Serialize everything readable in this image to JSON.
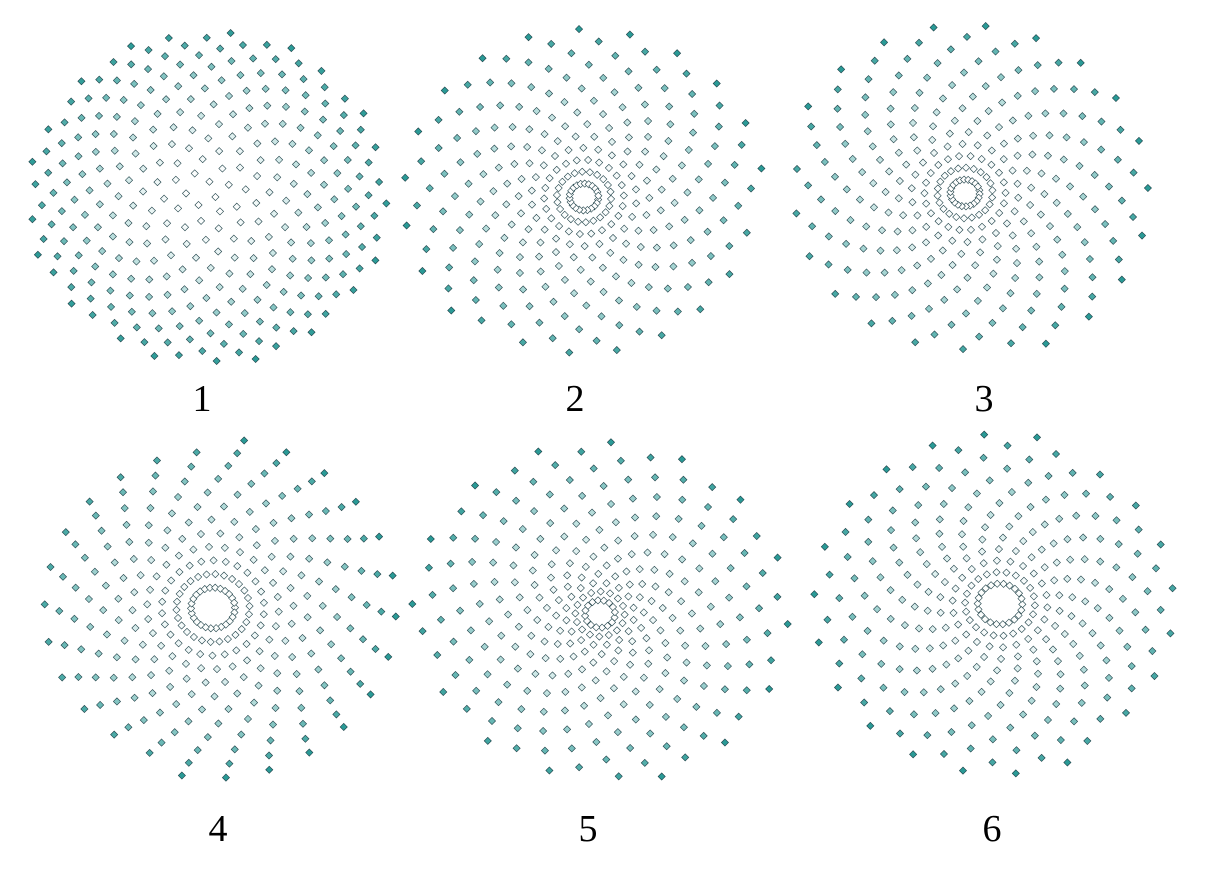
{
  "figure": {
    "colors": {
      "outer": "#2a9a96",
      "inner": "#ffffff",
      "stroke": "#1d3f46"
    },
    "panels": [
      {
        "label": "1",
        "points": 300,
        "spiral_arms": 0,
        "marker_shape": "diamond"
      },
      {
        "label": "2",
        "points": 300,
        "spiral_arms": 2,
        "marker_shape": "diamond"
      },
      {
        "label": "3",
        "points": 300,
        "spiral_arms": 2,
        "marker_shape": "diamond"
      },
      {
        "label": "4",
        "points": 300,
        "spiral_arms": 26,
        "marker_shape": "diamond"
      },
      {
        "label": "5",
        "points": 300,
        "spiral_arms": 2,
        "marker_shape": "diamond"
      },
      {
        "label": "6",
        "points": 300,
        "spiral_arms": 22,
        "marker_shape": "diamond"
      }
    ]
  }
}
